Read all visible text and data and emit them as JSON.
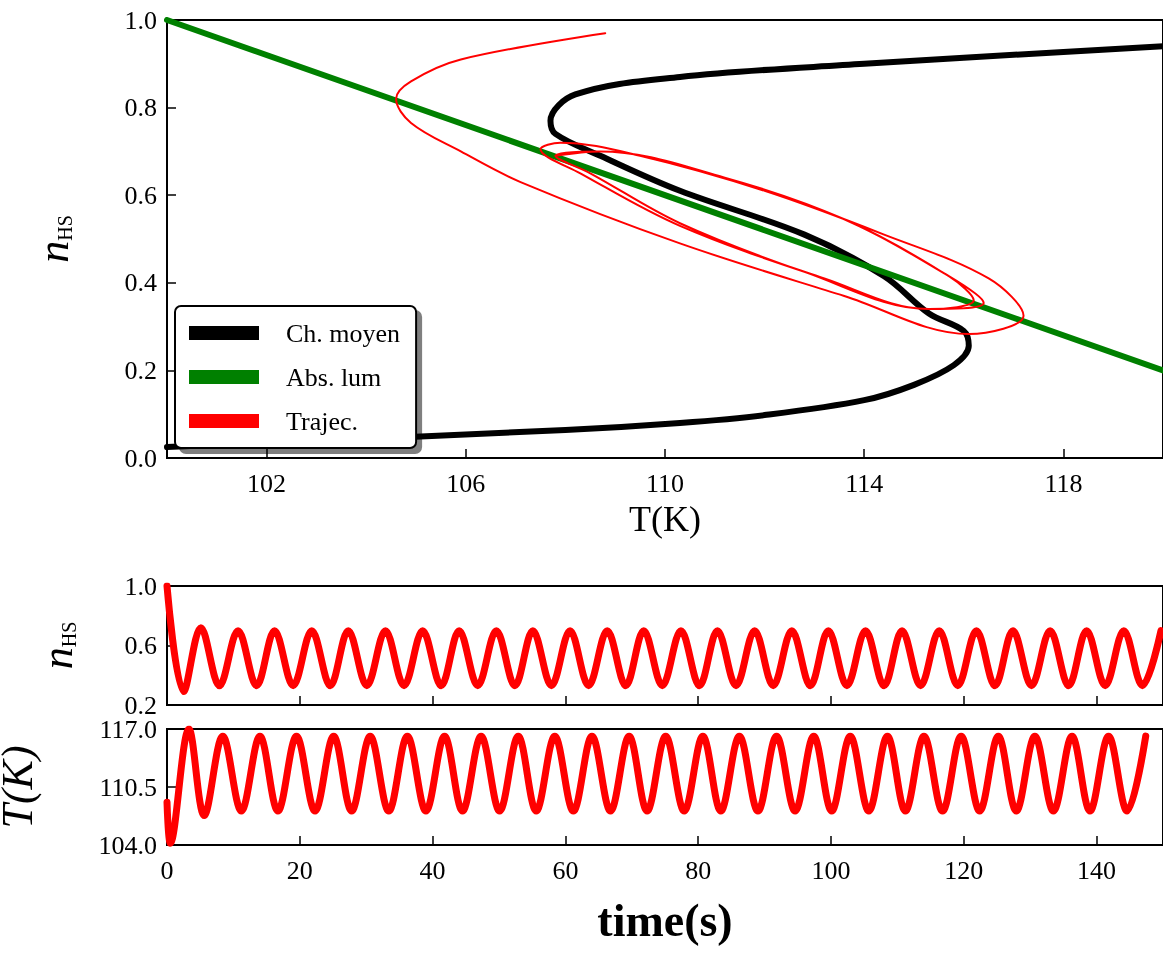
{
  "chart_data": [
    {
      "type": "line",
      "xlabel": "T(K)",
      "ylabel": "n$_{HS}$",
      "xlim": [
        100,
        120
      ],
      "xticks": [
        102,
        106,
        110,
        114,
        118
      ],
      "ylim": [
        0,
        1
      ],
      "yticks": [
        {
          "value": 0,
          "label": "0.0"
        },
        {
          "value": 0.2,
          "label": "0.2"
        },
        {
          "value": 0.4,
          "label": "0.4"
        },
        {
          "value": 0.6,
          "label": "0.6"
        },
        {
          "value": 0.8,
          "label": "0.8"
        },
        {
          "value": 1,
          "label": "1.0"
        }
      ],
      "legend": "bottom left",
      "series": [
        {
          "name": "Ch. moyen",
          "color": "#000000",
          "x": [
            100,
            104,
            108,
            110.3,
            112,
            114,
            115,
            115.8,
            116.1,
            116.0,
            115.3,
            114.4,
            112.8,
            110.3,
            108.7,
            107.8,
            107.7,
            108.2,
            110.3,
            114,
            118,
            120
          ],
          "values": [
            0.025,
            null,
            0.064,
            0.08,
            0.098,
            0.132,
            0.167,
            0.212,
            0.256,
            0.29,
            0.33,
            0.415,
            0.51,
            0.61,
            0.69,
            0.74,
            0.77,
            0.83,
            0.87,
            0.9,
            0.927,
            0.94
          ]
        },
        {
          "name": "Abs. lum",
          "color": "#008000",
          "x": [
            100,
            120
          ],
          "values": [
            1.0,
            0.2
          ]
        },
        {
          "name": "Trajec.",
          "color": "#ff0000",
          "x": [
            108.8,
            105.9,
            104.9,
            104.6,
            104.9,
            105.9,
            107.1,
            110.3,
            113.6,
            116.1,
            117.2,
            116.5,
            114.4,
            112.0,
            109.5,
            107.9,
            107.5,
            108.3,
            110.3,
            113.2,
            115.3,
            116.4,
            115.7,
            113.6,
            111.2,
            108.7,
            107.8,
            108.5,
            110.3,
            112.8,
            115.3,
            116.2,
            115.7,
            113.6,
            111.2,
            108.7,
            107.8
          ],
          "values": [
            0.97,
            0.91,
            0.86,
            0.82,
            0.765,
            0.7,
            0.63,
            0.49,
            0.37,
            0.283,
            0.325,
            0.41,
            0.51,
            0.61,
            0.69,
            0.72,
            0.705,
            0.65,
            0.53,
            0.41,
            0.34,
            0.354,
            0.415,
            0.545,
            0.64,
            0.7,
            0.69,
            0.65,
            0.536,
            0.425,
            0.34,
            0.36,
            0.415,
            0.545,
            0.64,
            0.7,
            0.69
          ]
        }
      ]
    },
    {
      "type": "line",
      "ylabel": "n$_{HS}$",
      "xlim": [
        0,
        150
      ],
      "xticks": [
        0,
        20,
        40,
        60,
        80,
        100,
        120,
        140
      ],
      "ylim": [
        0.2,
        1.0
      ],
      "yticks": [
        {
          "value": 0.2,
          "label": "0.2"
        },
        {
          "value": 0.6,
          "label": "0.6"
        },
        {
          "value": 1.0,
          "label": "1.0"
        }
      ],
      "tick_labels": "y",
      "color": "#ff0000",
      "x": [
        0,
        2.5,
        5.1,
        7.9,
        10.7,
        13.5,
        16.2,
        19.0,
        21.8,
        24.6,
        27.3,
        30.1,
        32.9,
        35.7,
        38.5,
        41.3,
        44.0,
        46.8,
        49.6,
        52.4,
        55.1,
        57.9,
        60.7,
        63.5,
        66.3,
        69.1,
        71.8,
        74.6,
        77.4,
        80.2,
        82.9,
        85.7,
        88.5,
        91.3,
        94.1,
        96.9,
        99.6,
        102.4,
        105.2,
        108.0,
        110.7,
        113.5,
        116.3,
        119.1,
        121.9,
        124.7,
        127.4,
        130.2,
        133.0,
        135.8,
        138.5,
        141.3,
        144.1,
        146.9,
        149.7
      ],
      "values": [
        1.0,
        0.29,
        0.72,
        0.33,
        0.7,
        0.33,
        0.7,
        0.33,
        0.7,
        0.33,
        0.7,
        0.33,
        0.7,
        0.33,
        0.7,
        0.33,
        0.7,
        0.33,
        0.7,
        0.33,
        0.7,
        0.33,
        0.7,
        0.33,
        0.7,
        0.33,
        0.7,
        0.33,
        0.7,
        0.33,
        0.7,
        0.33,
        0.7,
        0.33,
        0.7,
        0.33,
        0.7,
        0.33,
        0.7,
        0.33,
        0.7,
        0.33,
        0.7,
        0.33,
        0.7,
        0.33,
        0.7,
        0.33,
        0.7,
        0.33,
        0.7,
        0.33,
        0.7,
        0.33,
        0.7
      ]
    },
    {
      "type": "line",
      "ylabel": "T(K)",
      "xlabel": "time(s)",
      "xlim": [
        0,
        150
      ],
      "xticks": [
        0,
        20,
        40,
        60,
        80,
        100,
        120,
        140
      ],
      "ylim": [
        104,
        117
      ],
      "yticks": [
        {
          "value": 104,
          "label": "104.0"
        },
        {
          "value": 110.5,
          "label": "110.5"
        },
        {
          "value": 117,
          "label": "117.0"
        }
      ],
      "color": "#ff0000",
      "x": [
        0,
        0.5,
        3.3,
        5.6,
        8.4,
        11.2,
        14.0,
        16.7,
        19.5,
        22.3,
        25.1,
        27.8,
        30.6,
        33.4,
        36.2,
        39.0,
        41.8,
        44.5,
        47.3,
        50.1,
        52.9,
        55.6,
        58.4,
        61.2,
        64.0,
        66.8,
        69.6,
        72.3,
        75.1,
        77.9,
        80.7,
        83.4,
        86.2,
        89.0,
        91.8,
        94.6,
        97.4,
        100.1,
        102.9,
        105.7,
        108.5,
        111.2,
        114.0,
        116.8,
        119.6,
        122.4,
        125.2,
        127.9,
        130.7,
        133.5,
        136.3,
        139.0,
        141.8,
        144.6,
        147.4
      ],
      "values": [
        108.8,
        104.2,
        117.0,
        107.3,
        116.2,
        107.8,
        116.2,
        107.8,
        116.2,
        107.8,
        116.2,
        107.8,
        116.2,
        107.8,
        116.2,
        107.8,
        116.2,
        107.8,
        116.2,
        107.8,
        116.2,
        107.8,
        116.2,
        107.8,
        116.2,
        107.8,
        116.2,
        107.8,
        116.2,
        107.8,
        116.2,
        107.8,
        116.2,
        107.8,
        116.2,
        107.8,
        116.2,
        107.8,
        116.2,
        107.8,
        116.2,
        107.8,
        116.2,
        107.8,
        116.2,
        107.8,
        116.2,
        107.8,
        116.2,
        107.8,
        116.2,
        107.8,
        116.2,
        107.8,
        116.2
      ]
    }
  ]
}
